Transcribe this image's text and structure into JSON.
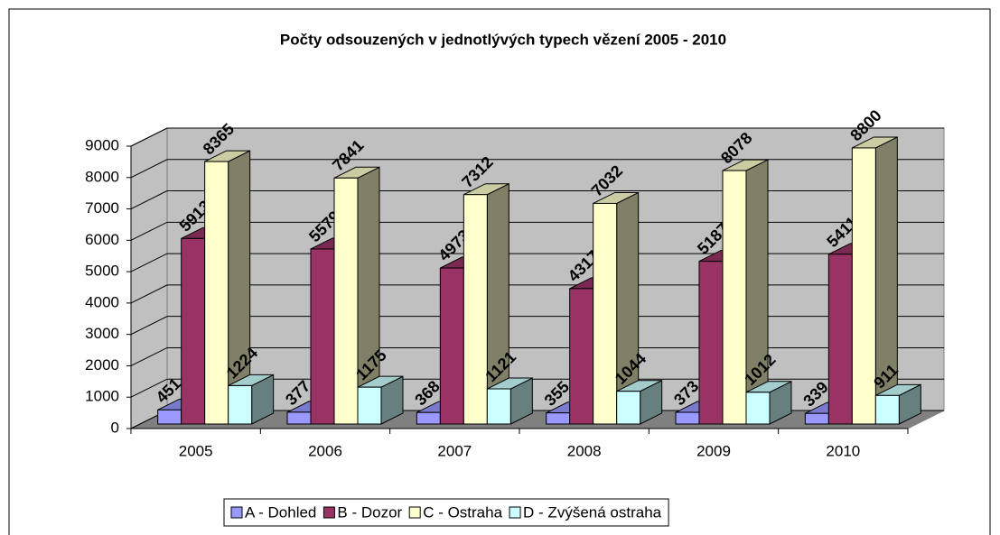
{
  "chart_data": {
    "type": "bar3d",
    "title": "Počty odsouzených v jednotlývých typech vězení 2005 - 2010",
    "categories": [
      "2005",
      "2006",
      "2007",
      "2008",
      "2009",
      "2010"
    ],
    "series": [
      {
        "name": "A - Dohled",
        "color": "#9999ff",
        "values": [
          451,
          377,
          368,
          355,
          373,
          339
        ]
      },
      {
        "name": "B - Dozor",
        "color": "#993366",
        "values": [
          5913,
          5579,
          4973,
          4317,
          5187,
          5411
        ]
      },
      {
        "name": "C - Ostraha",
        "color": "#ffffcc",
        "values": [
          8365,
          7841,
          7312,
          7032,
          8078,
          8800
        ]
      },
      {
        "name": "D - Zvýšená ostraha",
        "color": "#ccffff",
        "values": [
          1224,
          1175,
          1121,
          1044,
          1012,
          911
        ]
      }
    ],
    "ylim": [
      0,
      9000
    ],
    "yticks": [
      0,
      1000,
      2000,
      3000,
      4000,
      5000,
      6000,
      7000,
      8000,
      9000
    ],
    "grid": true,
    "legend": "bottom"
  }
}
